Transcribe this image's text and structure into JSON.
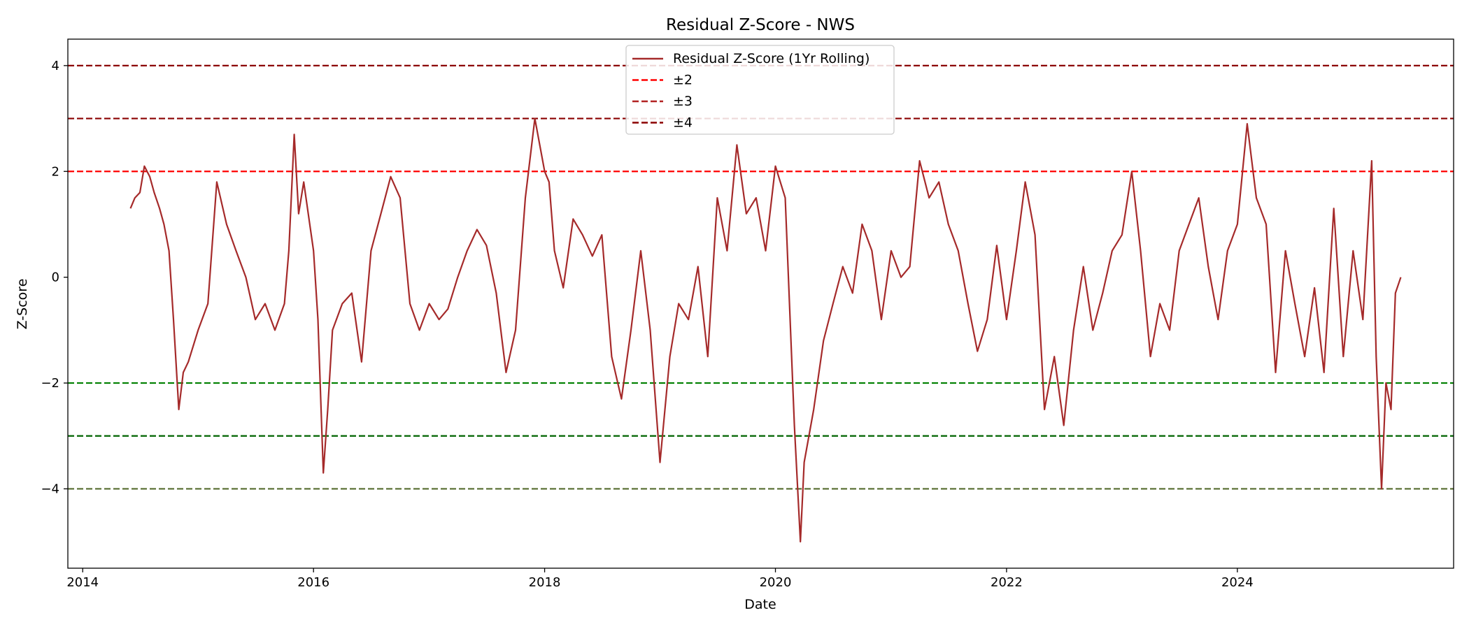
{
  "chart_data": {
    "type": "line",
    "title": "Residual Z-Score - NWS",
    "xlabel": "Date",
    "ylabel": "Z-Score",
    "xlim": [
      "2013-11-15",
      "2025-11-15"
    ],
    "ylim": [
      -5.5,
      4.5
    ],
    "x_ticks": [
      {
        "label": "2014",
        "date": "2014-01-01"
      },
      {
        "label": "2016",
        "date": "2016-01-01"
      },
      {
        "label": "2018",
        "date": "2018-01-01"
      },
      {
        "label": "2020",
        "date": "2020-01-01"
      },
      {
        "label": "2022",
        "date": "2022-01-01"
      },
      {
        "label": "2024",
        "date": "2024-01-01"
      }
    ],
    "y_ticks": [
      {
        "label": "−4",
        "value": -4
      },
      {
        "label": "−2",
        "value": -2
      },
      {
        "label": "0",
        "value": 0
      },
      {
        "label": "2",
        "value": 2
      },
      {
        "label": "4",
        "value": 4
      }
    ],
    "grid": false,
    "legend_position": "top-center",
    "legend": [
      {
        "label": "Residual Z-Score (1Yr Rolling)",
        "style": "solid",
        "color": "#A52A2A"
      },
      {
        "label": "±2",
        "style": "dashed",
        "color": "#FF0000"
      },
      {
        "label": "±3",
        "style": "dashed",
        "color": "#B22222"
      },
      {
        "label": "±4",
        "style": "dashed",
        "color": "#8B0000"
      }
    ],
    "reference_lines": [
      {
        "y": 4,
        "color": "#8B0000"
      },
      {
        "y": 3,
        "color": "#8B0000"
      },
      {
        "y": 2,
        "color": "#FF0000"
      },
      {
        "y": -2,
        "color": "#008000"
      },
      {
        "y": -3,
        "color": "#006400"
      },
      {
        "y": -4,
        "color": "#556B2F"
      }
    ],
    "series": [
      {
        "color": "#A52A2A",
        "points": [
          [
            "2014-06-01",
            1.3
          ],
          [
            "2014-06-15",
            1.5
          ],
          [
            "2014-07-01",
            1.6
          ],
          [
            "2014-07-15",
            2.1
          ],
          [
            "2014-08-01",
            1.9
          ],
          [
            "2014-08-15",
            1.6
          ],
          [
            "2014-09-01",
            1.3
          ],
          [
            "2014-09-15",
            1.0
          ],
          [
            "2014-10-01",
            0.5
          ],
          [
            "2014-10-15",
            -0.8
          ],
          [
            "2014-11-01",
            -2.5
          ],
          [
            "2014-11-15",
            -1.8
          ],
          [
            "2014-12-01",
            -1.6
          ],
          [
            "2015-01-01",
            -1.0
          ],
          [
            "2015-02-01",
            -0.5
          ],
          [
            "2015-03-01",
            1.8
          ],
          [
            "2015-04-01",
            1.0
          ],
          [
            "2015-05-01",
            0.5
          ],
          [
            "2015-06-01",
            0.0
          ],
          [
            "2015-07-01",
            -0.8
          ],
          [
            "2015-08-01",
            -0.5
          ],
          [
            "2015-09-01",
            -1.0
          ],
          [
            "2015-10-01",
            -0.5
          ],
          [
            "2015-10-15",
            0.5
          ],
          [
            "2015-11-01",
            2.7
          ],
          [
            "2015-11-15",
            1.2
          ],
          [
            "2015-12-01",
            1.8
          ],
          [
            "2016-01-01",
            0.5
          ],
          [
            "2016-01-15",
            -0.8
          ],
          [
            "2016-02-01",
            -3.7
          ],
          [
            "2016-02-15",
            -2.5
          ],
          [
            "2016-03-01",
            -1.0
          ],
          [
            "2016-04-01",
            -0.5
          ],
          [
            "2016-05-01",
            -0.3
          ],
          [
            "2016-06-01",
            -1.6
          ],
          [
            "2016-07-01",
            0.5
          ],
          [
            "2016-08-01",
            1.2
          ],
          [
            "2016-09-01",
            1.9
          ],
          [
            "2016-10-01",
            1.5
          ],
          [
            "2016-11-01",
            -0.5
          ],
          [
            "2016-12-01",
            -1.0
          ],
          [
            "2017-01-01",
            -0.5
          ],
          [
            "2017-02-01",
            -0.8
          ],
          [
            "2017-03-01",
            -0.6
          ],
          [
            "2017-04-01",
            0.0
          ],
          [
            "2017-05-01",
            0.5
          ],
          [
            "2017-06-01",
            0.9
          ],
          [
            "2017-07-01",
            0.6
          ],
          [
            "2017-08-01",
            -0.3
          ],
          [
            "2017-09-01",
            -1.8
          ],
          [
            "2017-10-01",
            -1.0
          ],
          [
            "2017-11-01",
            1.5
          ],
          [
            "2017-12-01",
            3.0
          ],
          [
            "2018-01-01",
            2.0
          ],
          [
            "2018-01-15",
            1.8
          ],
          [
            "2018-02-01",
            0.5
          ],
          [
            "2018-03-01",
            -0.2
          ],
          [
            "2018-04-01",
            1.1
          ],
          [
            "2018-05-01",
            0.8
          ],
          [
            "2018-06-01",
            0.4
          ],
          [
            "2018-07-01",
            0.8
          ],
          [
            "2018-08-01",
            -1.5
          ],
          [
            "2018-09-01",
            -2.3
          ],
          [
            "2018-10-01",
            -1.0
          ],
          [
            "2018-11-01",
            0.5
          ],
          [
            "2018-12-01",
            -1.0
          ],
          [
            "2019-01-01",
            -3.5
          ],
          [
            "2019-02-01",
            -1.5
          ],
          [
            "2019-03-01",
            -0.5
          ],
          [
            "2019-04-01",
            -0.8
          ],
          [
            "2019-05-01",
            0.2
          ],
          [
            "2019-06-01",
            -1.5
          ],
          [
            "2019-07-01",
            1.5
          ],
          [
            "2019-08-01",
            0.5
          ],
          [
            "2019-09-01",
            2.5
          ],
          [
            "2019-10-01",
            1.2
          ],
          [
            "2019-11-01",
            1.5
          ],
          [
            "2019-12-01",
            0.5
          ],
          [
            "2020-01-01",
            2.1
          ],
          [
            "2020-02-01",
            1.5
          ],
          [
            "2020-03-01",
            -2.8
          ],
          [
            "2020-03-20",
            -5.0
          ],
          [
            "2020-04-01",
            -3.5
          ],
          [
            "2020-05-01",
            -2.5
          ],
          [
            "2020-06-01",
            -1.2
          ],
          [
            "2020-07-01",
            -0.5
          ],
          [
            "2020-08-01",
            0.2
          ],
          [
            "2020-09-01",
            -0.3
          ],
          [
            "2020-10-01",
            1.0
          ],
          [
            "2020-11-01",
            0.5
          ],
          [
            "2020-12-01",
            -0.8
          ],
          [
            "2021-01-01",
            0.5
          ],
          [
            "2021-02-01",
            0.0
          ],
          [
            "2021-03-01",
            0.2
          ],
          [
            "2021-04-01",
            2.2
          ],
          [
            "2021-05-01",
            1.5
          ],
          [
            "2021-06-01",
            1.8
          ],
          [
            "2021-07-01",
            1.0
          ],
          [
            "2021-08-01",
            0.5
          ],
          [
            "2021-09-01",
            -0.5
          ],
          [
            "2021-10-01",
            -1.4
          ],
          [
            "2021-11-01",
            -0.8
          ],
          [
            "2021-12-01",
            0.6
          ],
          [
            "2022-01-01",
            -0.8
          ],
          [
            "2022-02-01",
            0.5
          ],
          [
            "2022-03-01",
            1.8
          ],
          [
            "2022-04-01",
            0.8
          ],
          [
            "2022-05-01",
            -2.5
          ],
          [
            "2022-06-01",
            -1.5
          ],
          [
            "2022-07-01",
            -2.8
          ],
          [
            "2022-08-01",
            -1.0
          ],
          [
            "2022-09-01",
            0.2
          ],
          [
            "2022-10-01",
            -1.0
          ],
          [
            "2022-11-01",
            -0.3
          ],
          [
            "2022-12-01",
            0.5
          ],
          [
            "2023-01-01",
            0.8
          ],
          [
            "2023-02-01",
            2.0
          ],
          [
            "2023-03-01",
            0.5
          ],
          [
            "2023-04-01",
            -1.5
          ],
          [
            "2023-05-01",
            -0.5
          ],
          [
            "2023-06-01",
            -1.0
          ],
          [
            "2023-07-01",
            0.5
          ],
          [
            "2023-08-01",
            1.0
          ],
          [
            "2023-09-01",
            1.5
          ],
          [
            "2023-10-01",
            0.2
          ],
          [
            "2023-11-01",
            -0.8
          ],
          [
            "2023-12-01",
            0.5
          ],
          [
            "2024-01-01",
            1.0
          ],
          [
            "2024-02-01",
            2.9
          ],
          [
            "2024-03-01",
            1.5
          ],
          [
            "2024-04-01",
            1.0
          ],
          [
            "2024-05-01",
            -1.8
          ],
          [
            "2024-06-01",
            0.5
          ],
          [
            "2024-07-01",
            -0.5
          ],
          [
            "2024-08-01",
            -1.5
          ],
          [
            "2024-09-01",
            -0.2
          ],
          [
            "2024-10-01",
            -1.8
          ],
          [
            "2024-11-01",
            1.3
          ],
          [
            "2024-12-01",
            -1.5
          ],
          [
            "2025-01-01",
            0.5
          ],
          [
            "2025-02-01",
            -0.8
          ],
          [
            "2025-03-01",
            2.2
          ],
          [
            "2025-03-15",
            -1.5
          ],
          [
            "2025-04-01",
            -4.0
          ],
          [
            "2025-04-15",
            -2.0
          ],
          [
            "2025-05-01",
            -2.5
          ],
          [
            "2025-05-15",
            -0.3
          ],
          [
            "2025-06-01",
            0.0
          ]
        ]
      }
    ]
  }
}
